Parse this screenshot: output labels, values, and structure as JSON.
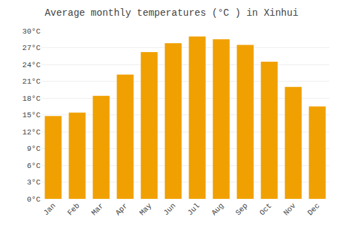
{
  "chart_data": {
    "type": "bar",
    "title": "Average monthly temperatures (°C ) in Xinhui",
    "categories": [
      "Jan",
      "Feb",
      "Mar",
      "Apr",
      "May",
      "Jun",
      "Jul",
      "Aug",
      "Sep",
      "Oct",
      "Nov",
      "Dec"
    ],
    "values": [
      14.8,
      15.4,
      18.4,
      22.2,
      26.2,
      27.8,
      29.0,
      28.5,
      27.5,
      24.5,
      20.0,
      16.5
    ],
    "color": "#F0A000",
    "ylim": [
      0,
      30
    ],
    "yticks": [
      {
        "value": 0,
        "label": "0°C"
      },
      {
        "value": 3,
        "label": "3°C"
      },
      {
        "value": 6,
        "label": "6°C"
      },
      {
        "value": 9,
        "label": "9°C"
      },
      {
        "value": 12,
        "label": "12°C"
      },
      {
        "value": 15,
        "label": "15°C"
      },
      {
        "value": 18,
        "label": "18°C"
      },
      {
        "value": 21,
        "label": "21°C"
      },
      {
        "value": 24,
        "label": "24°C"
      },
      {
        "value": 27,
        "label": "27°C"
      },
      {
        "value": 30,
        "label": "30°C"
      }
    ],
    "grid": true
  }
}
